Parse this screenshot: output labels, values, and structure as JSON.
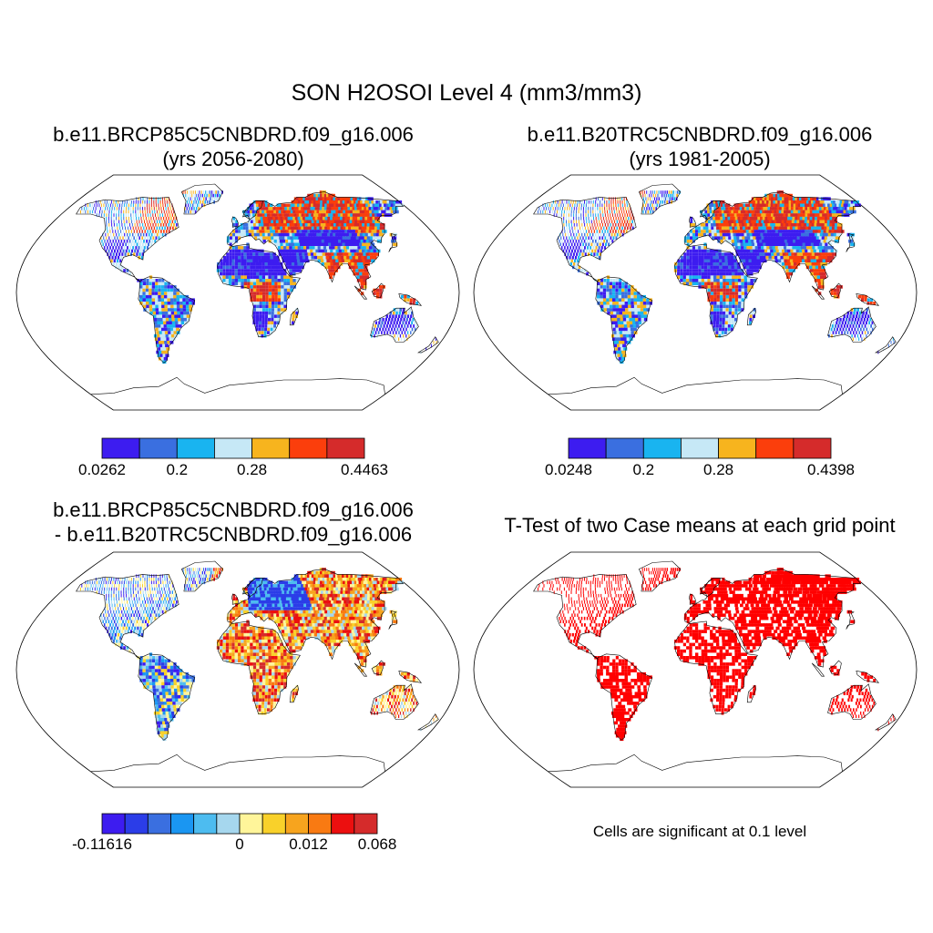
{
  "figure": {
    "title": "SON H2OSOI Level 4 (mm3/mm3)",
    "significance_note": "Cells are significant at 0.1 level"
  },
  "panels": [
    {
      "id": "case1",
      "title_line1": "b.e11.BRCP85C5CNBDRD.f09_g16.006",
      "title_line2": "(yrs 2056-2080)",
      "colorbar": {
        "colors": [
          "#3d1cf0",
          "#3a6fe0",
          "#19b4f0",
          "#c6e8f6",
          "#f7b41e",
          "#fb3e0c",
          "#d52b2b"
        ],
        "labels": [
          {
            "text": "0.0262",
            "boundary": 0
          },
          {
            "text": "0.2",
            "boundary": 2
          },
          {
            "text": "0.28",
            "boundary": 4
          },
          {
            "text": "0.4463",
            "boundary": 7
          }
        ]
      }
    },
    {
      "id": "case2",
      "title_line1": "b.e11.B20TRC5CNBDRD.f09_g16.006",
      "title_line2": "(yrs 1981-2005)",
      "colorbar": {
        "colors": [
          "#3d1cf0",
          "#3a6fe0",
          "#19b4f0",
          "#c6e8f6",
          "#f7b41e",
          "#fb3e0c",
          "#d52b2b"
        ],
        "labels": [
          {
            "text": "0.0248",
            "boundary": 0
          },
          {
            "text": "0.2",
            "boundary": 2
          },
          {
            "text": "0.28",
            "boundary": 4
          },
          {
            "text": "0.4398",
            "boundary": 7
          }
        ]
      }
    },
    {
      "id": "difference",
      "title_line1": "b.e11.BRCP85C5CNBDRD.f09_g16.006",
      "title_line2": "- b.e11.B20TRC5CNBDRD.f09_g16.006",
      "colorbar": {
        "colors": [
          "#3d1cf0",
          "#2b3de8",
          "#3a6fe0",
          "#1a96f2",
          "#4dbcf0",
          "#a6d7ee",
          "#fff59a",
          "#f9d12a",
          "#f7a41e",
          "#f97a12",
          "#ec0f0f",
          "#d52b2b"
        ],
        "labels": [
          {
            "text": "-0.11616",
            "boundary": 0
          },
          {
            "text": "0",
            "boundary": 6
          },
          {
            "text": "0.012",
            "boundary": 9
          },
          {
            "text": "0.068",
            "boundary": 12
          }
        ]
      }
    },
    {
      "id": "ttest",
      "title_line1": "T-Test of two Case means at each grid point",
      "significant_color": "#ff0000"
    }
  ]
}
